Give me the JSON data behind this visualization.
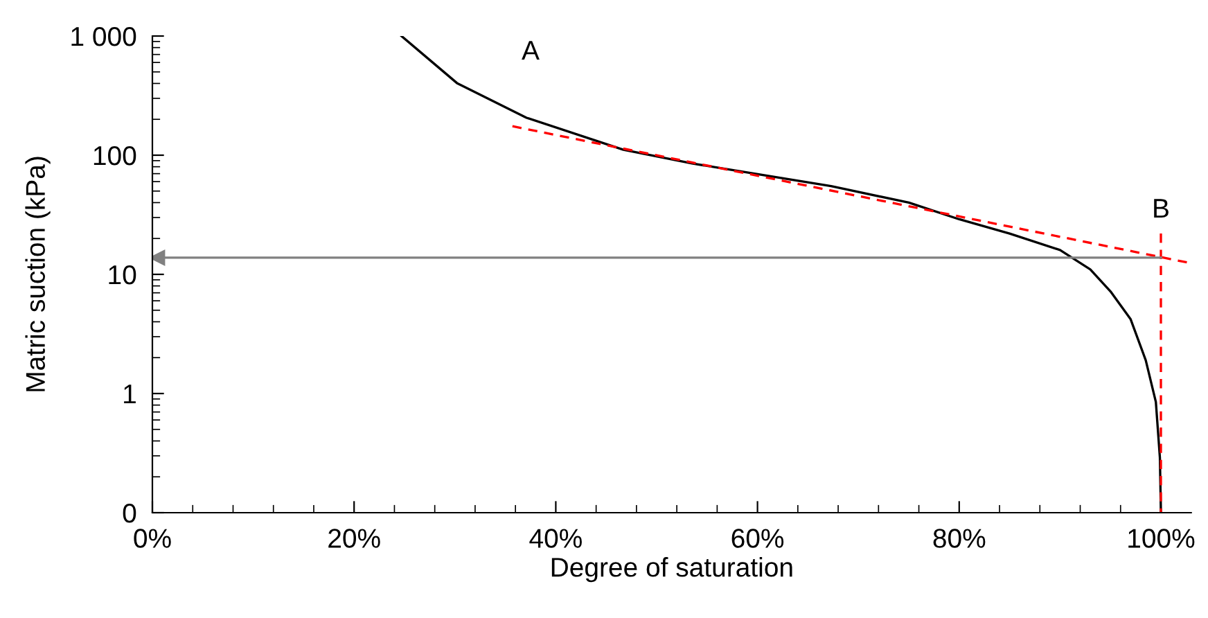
{
  "chart_data": {
    "type": "line",
    "xlabel": "Degree of saturation",
    "ylabel": "Matric suction (kPa)",
    "xlim": [
      0,
      103
    ],
    "xticks": [
      {
        "value": 0,
        "label": "0%"
      },
      {
        "value": 20,
        "label": "20%"
      },
      {
        "value": 40,
        "label": "40%"
      },
      {
        "value": 60,
        "label": "60%"
      },
      {
        "value": 80,
        "label": "80%"
      },
      {
        "value": 100,
        "label": "100%"
      }
    ],
    "ylim": [
      0.1,
      1000
    ],
    "yticks": [
      {
        "value": 0.1,
        "label": "0"
      },
      1,
      10,
      100,
      {
        "value": 1000,
        "label": "1 000"
      }
    ],
    "log": "y",
    "grid": false,
    "legend": false,
    "series": [
      {
        "color": "#000000",
        "line_style": "solid",
        "x": [
          24.7,
          30.2,
          37.1,
          46.7,
          53.6,
          67.3,
          75,
          80,
          85,
          90,
          93,
          95,
          97,
          98.5,
          99.5,
          99.9,
          100
        ],
        "values": [
          1000,
          403,
          206,
          111,
          85,
          55,
          40,
          29,
          22,
          16,
          11,
          7.2,
          4.2,
          1.9,
          0.85,
          0.29,
          0.1
        ]
      },
      {
        "color": "#ff0000",
        "line_style": "dashed",
        "x": [
          35.7,
          103
        ],
        "values": [
          175,
          12.4
        ]
      },
      {
        "color": "#ff0000",
        "line_style": "dashed",
        "x": [
          100,
          100
        ],
        "values": [
          22,
          0.1
        ]
      },
      {
        "color": "#808080",
        "line_style": "solid",
        "marker": "triangle",
        "x": [
          100,
          0.5
        ],
        "values": [
          13.8,
          13.8
        ]
      }
    ],
    "annotations": [
      "A",
      "B"
    ]
  }
}
